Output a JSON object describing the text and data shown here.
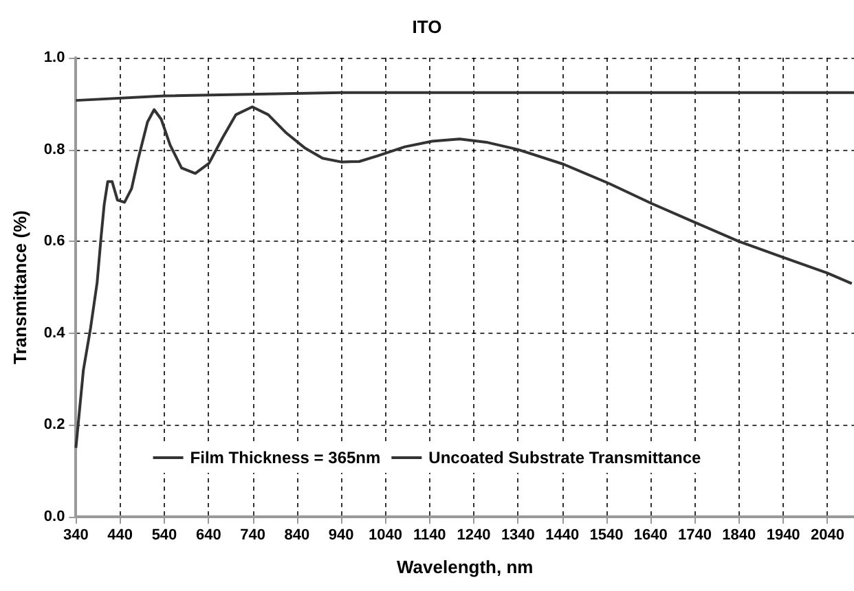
{
  "chart_data": {
    "type": "line",
    "title": "ITO",
    "xlabel": "Wavelength, nm",
    "ylabel": "Transmittance (%)",
    "xlim": [
      340,
      2100
    ],
    "xticks": [
      340,
      440,
      540,
      640,
      740,
      840,
      940,
      1040,
      1140,
      1240,
      1340,
      1440,
      1540,
      1640,
      1740,
      1840,
      1940,
      2040
    ],
    "ylim": [
      0,
      1
    ],
    "yticks": [
      {
        "value": 0,
        "label": "0.0"
      },
      {
        "value": 0.2,
        "label": "0.2"
      },
      {
        "value": 0.4,
        "label": "0.4"
      },
      {
        "value": 0.6,
        "label": "0.6"
      },
      {
        "value": 0.8,
        "label": "0.8"
      },
      {
        "value": 1,
        "label": "1.0"
      }
    ],
    "grid": true,
    "legend": "bottom",
    "marker": "none",
    "line_style": "solid",
    "series": [
      {
        "name": "Film Thickness = 365nm",
        "color": "#333333",
        "x": [
          340,
          357,
          373,
          388,
          397,
          404,
          412,
          422,
          434,
          450,
          466,
          481,
          502,
          517,
          533,
          553,
          579,
          610,
          641,
          672,
          702,
          739,
          775,
          816,
          857,
          898,
          940,
          981,
          1022,
          1084,
          1146,
          1208,
          1268,
          1340,
          1443,
          1546,
          1641,
          1741,
          1839,
          1937,
          2040,
          2095
        ],
        "values": [
          0.15,
          0.32,
          0.41,
          0.51,
          0.61,
          0.68,
          0.73,
          0.73,
          0.69,
          0.685,
          0.715,
          0.78,
          0.86,
          0.887,
          0.866,
          0.81,
          0.76,
          0.748,
          0.77,
          0.826,
          0.876,
          0.893,
          0.876,
          0.836,
          0.804,
          0.781,
          0.773,
          0.774,
          0.786,
          0.806,
          0.818,
          0.823,
          0.816,
          0.8,
          0.768,
          0.726,
          0.683,
          0.641,
          0.6,
          0.566,
          0.531,
          0.508
        ]
      },
      {
        "name": "Uncoated Substrate Transmittance",
        "color": "#333333",
        "x": [
          340,
          540,
          940,
          1400,
          2100
        ],
        "values": [
          0.907,
          0.917,
          0.924,
          0.924,
          0.924
        ]
      }
    ]
  }
}
